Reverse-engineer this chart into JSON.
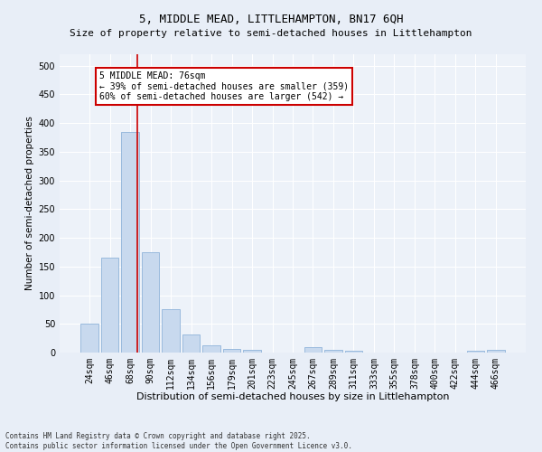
{
  "title": "5, MIDDLE MEAD, LITTLEHAMPTON, BN17 6QH",
  "subtitle": "Size of property relative to semi-detached houses in Littlehampton",
  "xlabel": "Distribution of semi-detached houses by size in Littlehampton",
  "ylabel": "Number of semi-detached properties",
  "categories": [
    "24sqm",
    "46sqm",
    "68sqm",
    "90sqm",
    "112sqm",
    "134sqm",
    "156sqm",
    "179sqm",
    "201sqm",
    "223sqm",
    "245sqm",
    "267sqm",
    "289sqm",
    "311sqm",
    "333sqm",
    "355sqm",
    "378sqm",
    "400sqm",
    "422sqm",
    "444sqm",
    "466sqm"
  ],
  "values": [
    50,
    165,
    385,
    175,
    75,
    32,
    13,
    7,
    5,
    0,
    0,
    9,
    5,
    3,
    0,
    0,
    0,
    0,
    0,
    3,
    4
  ],
  "bar_color": "#c8d9ee",
  "bar_edge_color": "#8fb3d9",
  "vline_x": 2.36,
  "vline_color": "#cc0000",
  "annotation_title": "5 MIDDLE MEAD: 76sqm",
  "annotation_line1": "← 39% of semi-detached houses are smaller (359)",
  "annotation_line2": "60% of semi-detached houses are larger (542) →",
  "annotation_box_color": "#ffffff",
  "annotation_box_edge_color": "#cc0000",
  "ylim": [
    0,
    520
  ],
  "yticks": [
    0,
    50,
    100,
    150,
    200,
    250,
    300,
    350,
    400,
    450,
    500
  ],
  "footer_line1": "Contains HM Land Registry data © Crown copyright and database right 2025.",
  "footer_line2": "Contains public sector information licensed under the Open Government Licence v3.0.",
  "bg_color": "#e8eef7",
  "plot_bg_color": "#edf2f9",
  "title_fontsize": 9,
  "subtitle_fontsize": 8,
  "tick_fontsize": 7,
  "ylabel_fontsize": 7.5,
  "xlabel_fontsize": 8,
  "annotation_fontsize": 7,
  "footer_fontsize": 5.5
}
